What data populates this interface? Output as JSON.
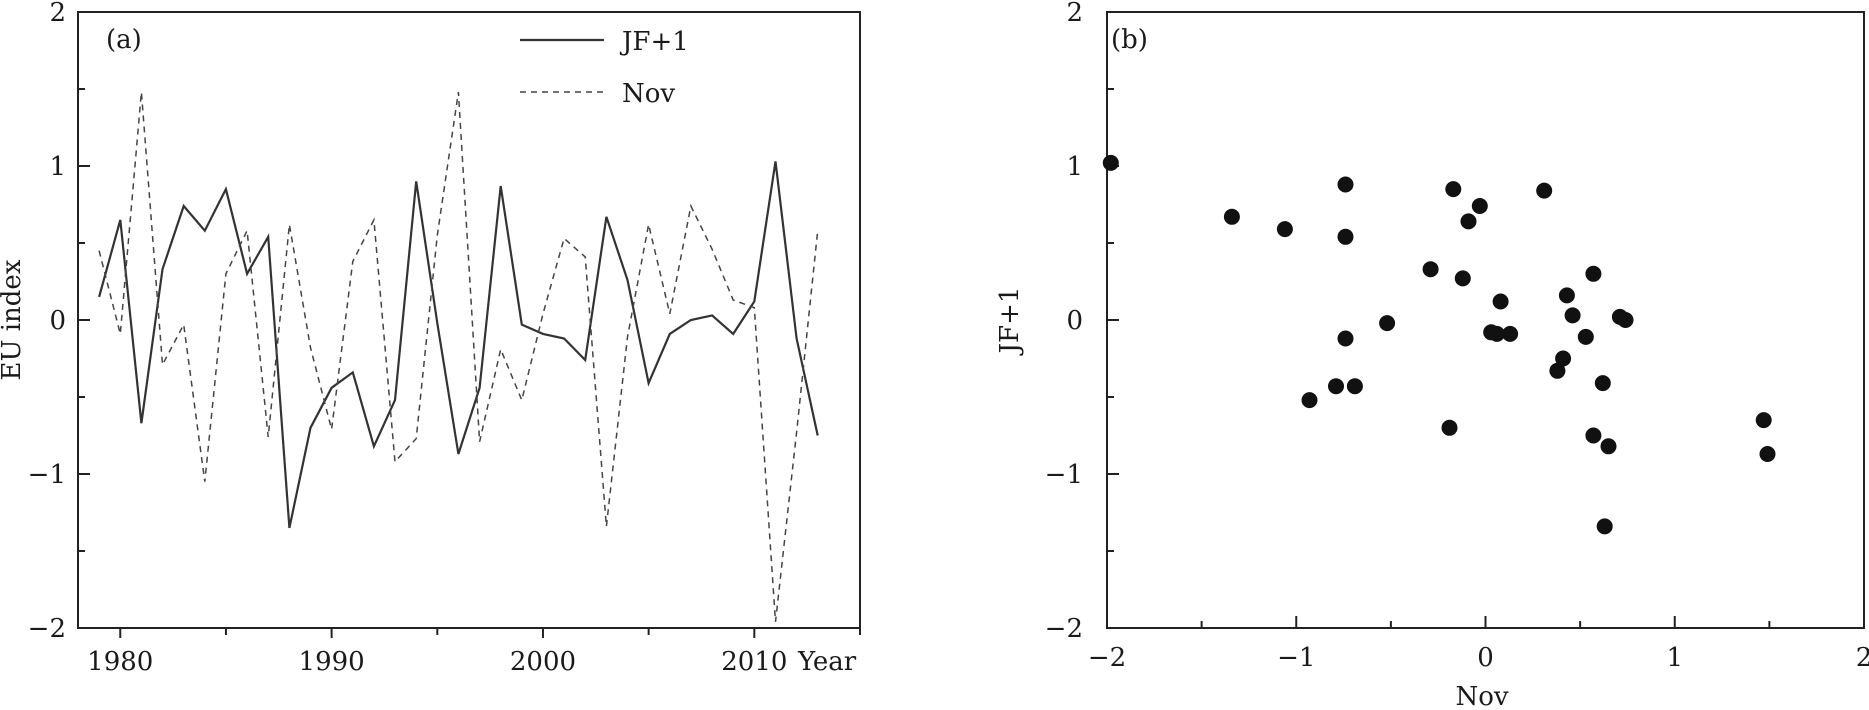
{
  "chart_data": [
    {
      "panel_label": "(a)",
      "type": "line",
      "xlabel": "Year",
      "ylabel": "EU  index",
      "xlim": [
        1978,
        2015
      ],
      "ylim": [
        -2,
        2
      ],
      "x_ticks": [
        1980,
        1990,
        2000,
        2010
      ],
      "x_tick_labels": [
        "1980",
        "1990",
        "2000",
        "2010"
      ],
      "y_ticks": [
        -2,
        -1,
        0,
        1,
        2
      ],
      "y_tick_labels": [
        "−2",
        "−1",
        "0",
        "1",
        "2"
      ],
      "legend_position": "top-center",
      "x": [
        1979,
        1980,
        1981,
        1982,
        1983,
        1984,
        1985,
        1986,
        1987,
        1988,
        1989,
        1990,
        1991,
        1992,
        1993,
        1994,
        1995,
        1996,
        1997,
        1998,
        1999,
        2000,
        2001,
        2002,
        2003,
        2004,
        2005,
        2006,
        2007,
        2008,
        2009,
        2010,
        2011,
        2012,
        2013
      ],
      "series": [
        {
          "name": "JF+1",
          "style": "solid",
          "color": "#333333",
          "values": [
            0.15,
            0.65,
            -0.67,
            0.33,
            0.74,
            0.58,
            0.85,
            0.3,
            0.54,
            -1.35,
            -0.7,
            -0.44,
            -0.34,
            -0.82,
            -0.52,
            0.9,
            -0.02,
            -0.87,
            -0.44,
            0.87,
            -0.03,
            -0.09,
            -0.12,
            -0.26,
            0.67,
            0.26,
            -0.41,
            -0.09,
            0.0,
            0.03,
            -0.09,
            0.12,
            1.03,
            -0.12,
            -0.75
          ]
        },
        {
          "name": "Nov",
          "style": "dashed",
          "color": "#444444",
          "values": [
            0.45,
            -0.09,
            1.48,
            -0.29,
            -0.03,
            -1.05,
            0.3,
            0.58,
            -0.76,
            0.62,
            -0.18,
            -0.71,
            0.38,
            0.65,
            -0.92,
            -0.77,
            0.55,
            1.48,
            -0.79,
            -0.19,
            -0.52,
            0.04,
            0.53,
            0.41,
            -1.34,
            -0.11,
            0.62,
            0.04,
            0.74,
            0.46,
            0.13,
            0.08,
            -1.96,
            -0.73,
            0.58
          ]
        }
      ]
    },
    {
      "panel_label": "(b)",
      "type": "scatter",
      "xlabel": "Nov",
      "ylabel": "JF+1",
      "xlim": [
        -2,
        2
      ],
      "ylim": [
        -2,
        2
      ],
      "x_ticks": [
        -2,
        -1,
        0,
        1,
        2
      ],
      "x_tick_labels": [
        "−2",
        "−1",
        "0",
        "1",
        "2"
      ],
      "y_ticks": [
        -2,
        -1,
        0,
        1,
        2
      ],
      "y_tick_labels": [
        "−2",
        "−1",
        "0",
        "1",
        "2"
      ],
      "marker_color": "#111111",
      "points": [
        [
          -1.98,
          1.02
        ],
        [
          -1.34,
          0.67
        ],
        [
          -1.06,
          0.59
        ],
        [
          -0.74,
          0.88
        ],
        [
          -0.74,
          0.54
        ],
        [
          -0.74,
          -0.12
        ],
        [
          -0.93,
          -0.52
        ],
        [
          -0.79,
          -0.43
        ],
        [
          -0.69,
          -0.43
        ],
        [
          -0.52,
          -0.02
        ],
        [
          -0.29,
          0.33
        ],
        [
          -0.19,
          -0.7
        ],
        [
          -0.17,
          0.85
        ],
        [
          -0.12,
          0.27
        ],
        [
          -0.09,
          0.64
        ],
        [
          -0.03,
          0.74
        ],
        [
          0.03,
          -0.08
        ],
        [
          0.06,
          -0.09
        ],
        [
          0.08,
          0.12
        ],
        [
          0.13,
          -0.09
        ],
        [
          0.31,
          0.84
        ],
        [
          0.38,
          -0.33
        ],
        [
          0.41,
          -0.25
        ],
        [
          0.43,
          0.16
        ],
        [
          0.46,
          0.03
        ],
        [
          0.53,
          -0.11
        ],
        [
          0.57,
          0.3
        ],
        [
          0.57,
          -0.75
        ],
        [
          0.62,
          -0.41
        ],
        [
          0.63,
          -1.34
        ],
        [
          0.65,
          -0.82
        ],
        [
          0.71,
          0.02
        ],
        [
          0.74,
          0.0
        ],
        [
          1.47,
          -0.65
        ],
        [
          1.49,
          -0.87
        ]
      ]
    }
  ]
}
